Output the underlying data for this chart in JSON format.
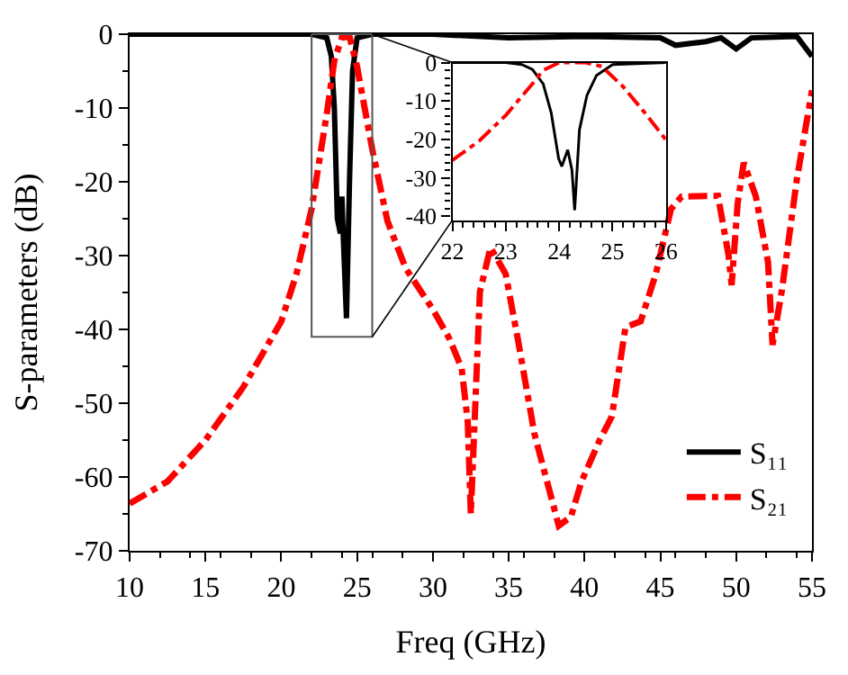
{
  "chart_data": [
    {
      "type": "line",
      "xlabel": "Freq (GHz)",
      "ylabel": "S-parameters (dB)",
      "xlim": [
        10,
        55
      ],
      "ylim": [
        -70,
        0
      ],
      "xticks": [
        10,
        15,
        20,
        25,
        30,
        35,
        40,
        45,
        50,
        55
      ],
      "yticks": [
        0,
        -10,
        -20,
        -30,
        -40,
        -50,
        -60,
        -70
      ],
      "grid": false,
      "legend": "bottom right",
      "series": [
        {
          "name": "S₁₁",
          "color": "#000000",
          "line_style": "solid",
          "x": [
            10,
            22,
            23,
            23.3,
            23.5,
            23.7,
            23.9,
            24.0,
            24.1,
            24.3,
            24.5,
            24.7,
            25,
            26,
            30,
            35,
            40,
            45,
            46,
            48,
            49,
            50,
            51,
            54,
            55
          ],
          "values": [
            0,
            0,
            -0.5,
            -3,
            -10,
            -25,
            -27,
            -22,
            -28,
            -38.5,
            -20,
            -5,
            -0.5,
            0,
            0,
            -0.5,
            -0.3,
            -0.5,
            -1.5,
            -1,
            -0.5,
            -2,
            -0.5,
            -0.3,
            -3
          ]
        },
        {
          "name": "S₂₁",
          "color": "#ff0000",
          "line_style": "dashdot",
          "x": [
            10,
            12.5,
            15,
            17.5,
            20,
            21,
            22,
            23,
            23.5,
            24,
            24.5,
            25,
            26,
            27,
            28.2,
            30,
            31.1,
            31.9,
            32.3,
            32.5,
            32.8,
            33.1,
            33.8,
            34.8,
            35.6,
            36.7,
            38.3,
            39.1,
            39.8,
            41,
            41.8,
            42.7,
            43.7,
            44.7,
            45.7,
            46.4,
            48.8,
            49.5,
            49.7,
            50.1,
            50.5,
            51.3,
            52.1,
            52.4,
            53,
            54,
            55
          ],
          "values": [
            -63.6,
            -60.6,
            -55,
            -47.8,
            -38.9,
            -32.5,
            -23.7,
            -10.8,
            -3.6,
            -0.4,
            -0.3,
            -4.4,
            -15.6,
            -25.3,
            -31.7,
            -37.3,
            -41.3,
            -45.3,
            -52.6,
            -65,
            -50,
            -34.9,
            -28.9,
            -32.5,
            -41.3,
            -54.2,
            -66.6,
            -65.4,
            -60.6,
            -55,
            -51.8,
            -39.7,
            -38.9,
            -32.5,
            -23.7,
            -22,
            -21.9,
            -30,
            -34,
            -22.9,
            -17.4,
            -22,
            -30.9,
            -42.1,
            -34.9,
            -19.7,
            -7.6
          ]
        }
      ]
    },
    {
      "type": "line",
      "xlim": [
        22,
        26
      ],
      "ylim": [
        -41,
        0
      ],
      "xticks": [
        22,
        23,
        24,
        25,
        26
      ],
      "yticks": [
        0,
        -10,
        -20,
        -30,
        -40
      ],
      "grid": false,
      "series": [
        {
          "color": "#000000",
          "line_style": "solid",
          "x": [
            22,
            22.4,
            23,
            23.3,
            23.5,
            23.7,
            23.85,
            23.99,
            24.05,
            24.16,
            24.24,
            24.29,
            24.38,
            24.52,
            24.7,
            25,
            26
          ],
          "values": [
            0,
            0,
            0,
            -0.5,
            -1.8,
            -5.5,
            -13,
            -25,
            -27,
            -22.7,
            -28,
            -38.4,
            -17.5,
            -8.5,
            -3.3,
            -0.5,
            0
          ]
        },
        {
          "color": "#ff0000",
          "line_style": "dashdot",
          "x": [
            22,
            22.5,
            23,
            23.5,
            23.7,
            24,
            24.5,
            24.8,
            25.2,
            25.6,
            26
          ],
          "values": [
            -25.4,
            -20.4,
            -13.7,
            -5.5,
            -2,
            0,
            0,
            -1,
            -6.3,
            -13,
            -20.1
          ]
        }
      ]
    }
  ]
}
